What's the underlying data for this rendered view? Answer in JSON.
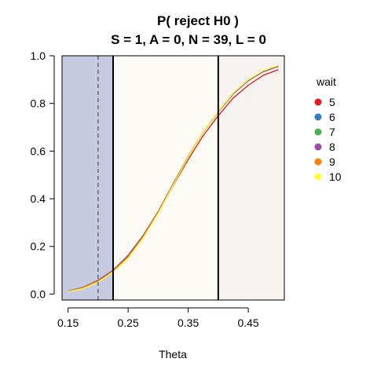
{
  "chart_data": {
    "type": "line",
    "title": "P( reject H0 )",
    "subtitle": "S = 1, A = 0, N = 39, L = 0",
    "xlabel": "Theta",
    "ylabel": "",
    "xlim": [
      0.14,
      0.51
    ],
    "ylim": [
      -0.025,
      1.0
    ],
    "x_ticks": [
      0.15,
      0.25,
      0.35,
      0.45
    ],
    "x_tick_labels": [
      "0.15",
      "0.25",
      "0.35",
      "0.45"
    ],
    "y_ticks": [
      0.0,
      0.2,
      0.4,
      0.6,
      0.8,
      1.0
    ],
    "y_tick_labels": [
      "0.0",
      "0.2",
      "0.4",
      "0.6",
      "0.8",
      "1.0"
    ],
    "grid": false,
    "legend": {
      "title": "wait",
      "position": "right"
    },
    "regions": [
      {
        "from": 0.14,
        "to": 0.225,
        "color": "#c6cbe1"
      },
      {
        "from": 0.225,
        "to": 0.4,
        "color": "#fbfaf5"
      },
      {
        "from": 0.4,
        "to": 0.51,
        "color": "#f6f2ef"
      }
    ],
    "vlines": [
      {
        "x": 0.2,
        "style": "dashed",
        "color": "#4a4f6a"
      },
      {
        "x": 0.225,
        "style": "solid",
        "color": "#000000"
      },
      {
        "x": 0.4,
        "style": "solid",
        "color": "#000000"
      }
    ],
    "x": [
      0.15,
      0.175,
      0.2,
      0.225,
      0.25,
      0.275,
      0.3,
      0.325,
      0.35,
      0.375,
      0.4,
      0.425,
      0.45,
      0.475,
      0.5
    ],
    "series": [
      {
        "name": "5",
        "color": "#e41a1c",
        "values": [
          0.012,
          0.028,
          0.056,
          0.098,
          0.158,
          0.24,
          0.34,
          0.455,
          0.565,
          0.665,
          0.748,
          0.823,
          0.876,
          0.918,
          0.942
        ]
      },
      {
        "name": "6",
        "color": "#377eb8",
        "values": [
          0.012,
          0.028,
          0.058,
          0.1,
          0.162,
          0.245,
          0.345,
          0.462,
          0.575,
          0.678,
          0.764,
          0.84,
          0.895,
          0.933,
          0.955
        ]
      },
      {
        "name": "7",
        "color": "#4daf4a",
        "values": [
          0.012,
          0.028,
          0.058,
          0.1,
          0.163,
          0.246,
          0.346,
          0.463,
          0.577,
          0.68,
          0.766,
          0.842,
          0.897,
          0.935,
          0.957
        ]
      },
      {
        "name": "8",
        "color": "#984ea3",
        "values": [
          0.012,
          0.028,
          0.058,
          0.1,
          0.163,
          0.246,
          0.346,
          0.463,
          0.577,
          0.68,
          0.766,
          0.842,
          0.897,
          0.935,
          0.957
        ]
      },
      {
        "name": "9",
        "color": "#ff7f00",
        "values": [
          0.011,
          0.026,
          0.054,
          0.096,
          0.156,
          0.24,
          0.342,
          0.46,
          0.576,
          0.68,
          0.767,
          0.844,
          0.899,
          0.937,
          0.959
        ]
      },
      {
        "name": "10",
        "color": "#ffff33",
        "values": [
          0.01,
          0.023,
          0.05,
          0.092,
          0.15,
          0.235,
          0.338,
          0.457,
          0.574,
          0.679,
          0.767,
          0.845,
          0.9,
          0.938,
          0.96
        ]
      }
    ]
  }
}
